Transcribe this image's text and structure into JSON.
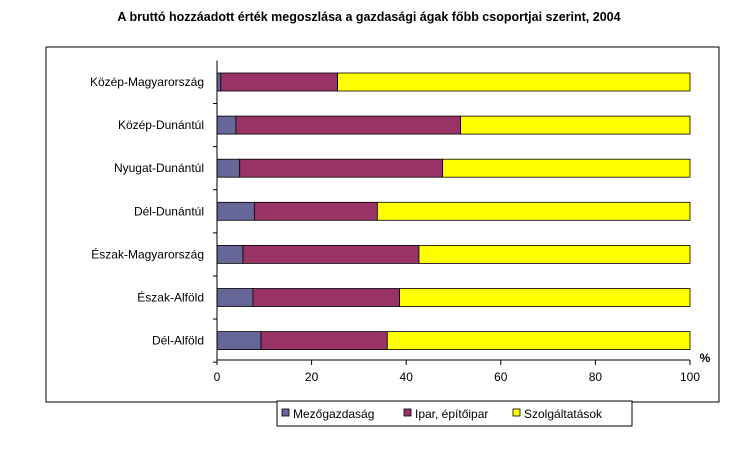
{
  "chart_data": {
    "type": "bar",
    "orientation": "horizontal",
    "stacked": true,
    "title": "A bruttó hozzáadott érték megoszlása a gazdasági ágak főbb csoportjai szerint, 2004",
    "xlabel": "%",
    "ylabel": "",
    "xlim": [
      0,
      100
    ],
    "x_ticks": [
      "0",
      "20",
      "40",
      "60",
      "80",
      "100"
    ],
    "grid": false,
    "legend_position": "bottom",
    "categories": [
      "Közép-Magyarország",
      "Közép-Dunántúl",
      "Nyugat-Dunántúl",
      "Dél-Dunántúl",
      "Észak-Magyarország",
      "Észak-Alföld",
      "Dél-Alföld"
    ],
    "series": [
      {
        "name": "Mezőgazdaság",
        "color": "#666699",
        "values": [
          0.8,
          4.0,
          4.8,
          7.9,
          5.5,
          7.6,
          9.3
        ]
      },
      {
        "name": "Ipar, építőipar",
        "color": "#993366",
        "values": [
          24.7,
          47.5,
          42.9,
          26.0,
          37.2,
          31.0,
          26.7
        ]
      },
      {
        "name": "Szolgáltatások",
        "color": "#FFFF00",
        "values": [
          74.5,
          48.5,
          52.3,
          66.1,
          57.3,
          61.4,
          64.0
        ]
      }
    ]
  }
}
